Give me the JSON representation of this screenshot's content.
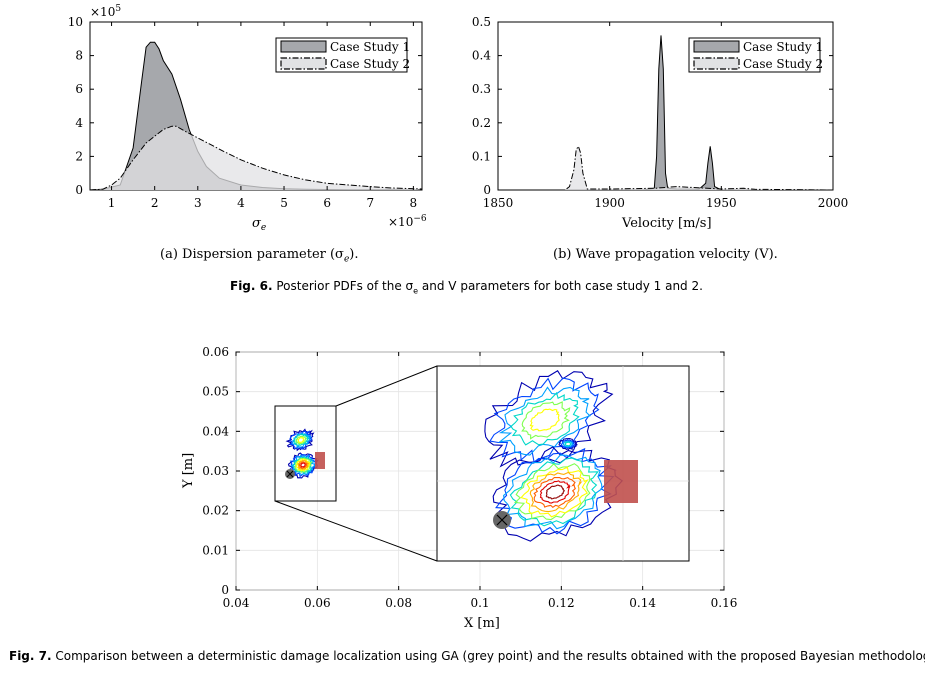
{
  "figure6": {
    "caption_label": "Fig. 6.",
    "caption_text": "Posterior PDFs of the σ",
    "caption_text_sub": "e",
    "caption_text_rest": " and V parameters for both case study 1 and 2.",
    "panel_a": {
      "subcaption": "(a) Dispersion parameter (σ",
      "subcaption_sub": "e",
      "subcaption_end": ").",
      "chart_data": {
        "type": "area",
        "xlabel": "σ",
        "xlabel_sub": "e",
        "x_exponent_label": "×10",
        "x_exponent": "−6",
        "y_exponent_label": "×10",
        "y_exponent": "5",
        "xlim": [
          0.5,
          8.2
        ],
        "ylim": [
          0,
          10
        ],
        "x_ticks": [
          "1",
          "2",
          "3",
          "4",
          "5",
          "6",
          "7",
          "8"
        ],
        "y_ticks": [
          "0",
          "2",
          "4",
          "6",
          "8",
          "10"
        ],
        "legend_position": "top-right",
        "series": [
          {
            "name": "Case Study 1",
            "color": "#a6a8ac",
            "line": "solid",
            "x": [
              0.5,
              0.8,
              1.2,
              1.5,
              1.7,
              1.8,
              1.9,
              2.0,
              2.1,
              2.2,
              2.4,
              2.6,
              2.8,
              3.0,
              3.2,
              3.5,
              4.0,
              4.5,
              5.0,
              5.5,
              6.0,
              6.5,
              7.0,
              7.5,
              8.0,
              8.2
            ],
            "y": [
              0,
              0.05,
              0.3,
              2.5,
              6.5,
              8.5,
              8.8,
              8.8,
              8.4,
              7.7,
              6.9,
              5.4,
              3.6,
              2.3,
              1.4,
              0.7,
              0.3,
              0.15,
              0.08,
              0.05,
              0.03,
              0.02,
              0.01,
              0.01,
              0,
              0
            ]
          },
          {
            "name": "Case Study 2",
            "color": "#e1e2e4",
            "line": "dashdot",
            "x": [
              0.5,
              0.8,
              1.0,
              1.2,
              1.5,
              1.8,
              2.0,
              2.2,
              2.4,
              2.5,
              2.7,
              3.0,
              3.3,
              3.6,
              4.0,
              4.5,
              5.0,
              5.5,
              6.0,
              6.5,
              7.0,
              7.5,
              8.0,
              8.2
            ],
            "y": [
              0,
              0.05,
              0.3,
              0.7,
              1.8,
              2.8,
              3.2,
              3.6,
              3.8,
              3.8,
              3.5,
              3.1,
              2.7,
              2.3,
              1.8,
              1.3,
              0.9,
              0.6,
              0.4,
              0.3,
              0.2,
              0.12,
              0.08,
              0.06
            ]
          }
        ]
      }
    },
    "panel_b": {
      "subcaption": "(b) Wave propagation velocity (V).",
      "chart_data": {
        "type": "area",
        "xlabel": "Velocity [m/s]",
        "xlim": [
          1850,
          2000
        ],
        "ylim": [
          0,
          0.5
        ],
        "x_ticks": [
          "1850",
          "1900",
          "1950",
          "2000"
        ],
        "y_ticks": [
          "0",
          "0.1",
          "0.2",
          "0.3",
          "0.4",
          "0.5"
        ],
        "legend_position": "top-right",
        "series": [
          {
            "name": "Case Study 1",
            "color": "#a6a8ac",
            "line": "solid",
            "x": [
              1850,
              1915,
              1920,
              1921,
              1922,
              1923,
              1924,
              1925,
              1926,
              1930,
              1940,
              1943,
              1944,
              1945,
              1946,
              1947,
              1950,
              2000
            ],
            "y": [
              0,
              0,
              0.005,
              0.1,
              0.36,
              0.46,
              0.36,
              0.05,
              0.005,
              0.003,
              0.002,
              0.02,
              0.08,
              0.13,
              0.08,
              0.01,
              0,
              0
            ]
          },
          {
            "name": "Case Study 2",
            "color": "#e1e2e4",
            "line": "dashdot",
            "x": [
              1850,
              1880,
              1882,
              1884,
              1885,
              1886,
              1887,
              1888,
              1890,
              1900,
              1920,
              1930,
              1950,
              1960,
              1965,
              2000
            ],
            "y": [
              0,
              0,
              0.01,
              0.06,
              0.12,
              0.13,
              0.11,
              0.05,
              0.003,
              0.003,
              0.005,
              0.01,
              0.003,
              0.005,
              0.002,
              0
            ]
          }
        ]
      }
    }
  },
  "figure7": {
    "caption_label": "Fig. 7.",
    "caption_text": "Comparison between a deterministic damage localization using GA (grey point) and the results obtained with the proposed Bayesian methodology.",
    "chart_data": {
      "type": "contour",
      "xlabel": "X [m]",
      "ylabel": "Y [m]",
      "xlim": [
        0.04,
        0.16
      ],
      "ylim": [
        0,
        0.06
      ],
      "x_ticks": [
        "0.04",
        "0.06",
        "0.08",
        "0.1",
        "0.12",
        "0.14",
        "0.16"
      ],
      "y_ticks": [
        "0",
        "0.01",
        "0.02",
        "0.03",
        "0.04",
        "0.05",
        "0.06"
      ],
      "ga_point": {
        "x": 0.0545,
        "y": 0.029,
        "color": "#666666"
      },
      "damage_region": {
        "x0": 0.0594,
        "x1": 0.0615,
        "y0": 0.0303,
        "y1": 0.0345,
        "color": "#c0504d"
      },
      "zoom_box": {
        "x0": 0.05,
        "x1": 0.065,
        "y0": 0.022,
        "y1": 0.046
      },
      "contour_colors": [
        "#0000b0",
        "#0044ff",
        "#00a0ff",
        "#00d8c8",
        "#7fff50",
        "#ffff00",
        "#ffb000",
        "#ff6000",
        "#e00000",
        "#900000"
      ]
    }
  }
}
